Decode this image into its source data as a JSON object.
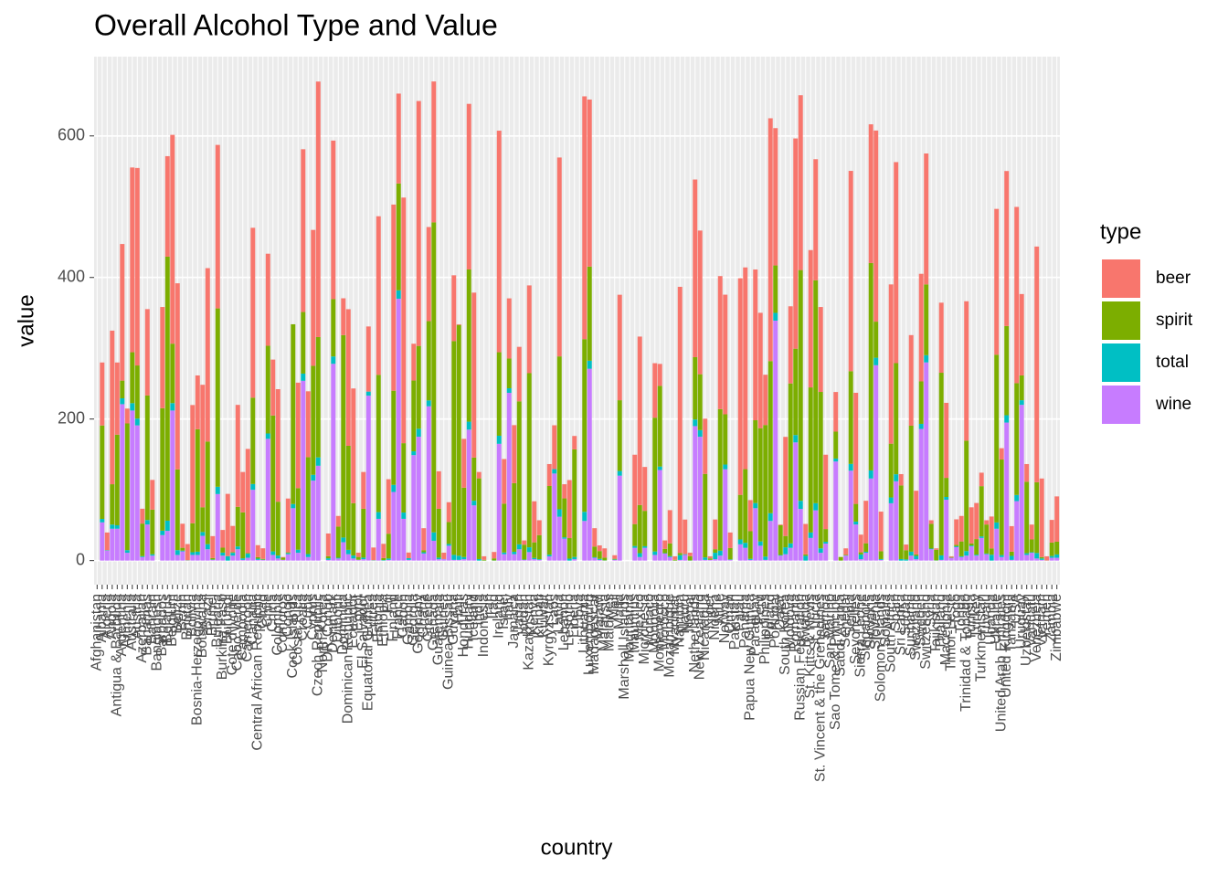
{
  "chart_data": {
    "type": "stacked_bar",
    "title": "Overall Alcohol Type and Value",
    "x_label": "country",
    "y_label": "value",
    "legend_title": "type",
    "ylim": [
      -34,
      712
    ],
    "yticks": [
      0,
      200,
      400,
      600
    ],
    "grid": true,
    "legend_position": "right",
    "categories": [
      "Afghanistan",
      "Albania",
      "Algeria",
      "Angola",
      "Antigua & Barbuda",
      "Argentina",
      "Armenia",
      "Australia",
      "Austria",
      "Azerbaijan",
      "Bahamas",
      "Bahrain",
      "Bangladesh",
      "Barbados",
      "Belarus",
      "Belgium",
      "Belize",
      "Benin",
      "Bhutan",
      "Bolivia",
      "Bosnia-Herzegovina",
      "Botswana",
      "Brazil",
      "Brunei",
      "Bulgaria",
      "Burkina Faso",
      "Burundi",
      "Cote d'Ivoire",
      "Cabo Verde",
      "Cambodia",
      "Cameroon",
      "Canada",
      "Central African Republic",
      "Chad",
      "Chile",
      "China",
      "Colombia",
      "Comoros",
      "Congo",
      "Cook Islands",
      "Costa Rica",
      "Croatia",
      "Cuba",
      "Cyprus",
      "Czech Republic",
      "North Korea",
      "DR Congo",
      "Denmark",
      "Djibouti",
      "Dominica",
      "Dominican Republic",
      "Ecuador",
      "Egypt",
      "El Salvador",
      "Equatorial Guinea",
      "Eritrea",
      "Estonia",
      "Ethiopia",
      "Fiji",
      "Finland",
      "France",
      "Gabon",
      "Gambia",
      "Georgia",
      "Germany",
      "Ghana",
      "Greece",
      "Grenada",
      "Guatemala",
      "Guinea",
      "Guinea-Bissau",
      "Guyana",
      "Haiti",
      "Honduras",
      "Hungary",
      "Iceland",
      "India",
      "Indonesia",
      "Iran",
      "Iraq",
      "Ireland",
      "Israel",
      "Italy",
      "Jamaica",
      "Japan",
      "Jordan",
      "Kazakhstan",
      "Kenya",
      "Kiribati",
      "Kuwait",
      "Kyrgyzstan",
      "Laos",
      "Latvia",
      "Lebanon",
      "Lesotho",
      "Liberia",
      "Libya",
      "Lithuania",
      "Luxembourg",
      "Madagascar",
      "Malawi",
      "Malaysia",
      "Maldives",
      "Mali",
      "Malta",
      "Marshall Islands",
      "Mauritania",
      "Mauritius",
      "Mexico",
      "Micronesia",
      "Monaco",
      "Mongolia",
      "Montenegro",
      "Morocco",
      "Mozambique",
      "Myanmar",
      "Namibia",
      "Nauru",
      "Nepal",
      "Netherlands",
      "New Zealand",
      "Nicaragua",
      "Niger",
      "Nigeria",
      "Niue",
      "Norway",
      "Oman",
      "Pakistan",
      "Palau",
      "Panama",
      "Papua New Guinea",
      "Paraguay",
      "Peru",
      "Philippines",
      "Poland",
      "Portugal",
      "Qatar",
      "South Korea",
      "Moldova",
      "Romania",
      "Russian Federation",
      "Rwanda",
      "St. Kitts & Nevis",
      "St. Lucia",
      "St. Vincent & the Grenadines",
      "Samoa",
      "San Marino",
      "Sao Tome & Principe",
      "Saudi Arabia",
      "Senegal",
      "Serbia",
      "Seychelles",
      "Sierra Leone",
      "Singapore",
      "Slovakia",
      "Slovenia",
      "Solomon Islands",
      "Somalia",
      "South Africa",
      "Spain",
      "Sri Lanka",
      "Sudan",
      "Suriname",
      "Swaziland",
      "Sweden",
      "Switzerland",
      "Syria",
      "Tajikistan",
      "Thailand",
      "Macedonia",
      "Timor-Leste",
      "Togo",
      "Tonga",
      "Trinidad & Tobago",
      "Tunisia",
      "Turkey",
      "Turkmenistan",
      "Tuvalu",
      "Uganda",
      "Ukraine",
      "United Arab Emirates",
      "United Kingdom",
      "Tanzania",
      "USA",
      "Uruguay",
      "Uzbekistan",
      "Vanuatu",
      "Venezuela",
      "Vietnam",
      "Yemen",
      "Zambia",
      "Zimbabwe"
    ],
    "series": [
      {
        "name": "beer",
        "color": "#F8766D",
        "values": [
          0,
          89,
          25,
          217,
          102,
          193,
          21,
          261,
          279,
          21,
          122,
          42,
          0,
          143,
          142,
          295,
          263,
          34,
          23,
          167,
          76,
          173,
          245,
          31,
          231,
          25,
          88,
          37,
          144,
          57,
          147,
          240,
          17,
          15,
          130,
          79,
          159,
          1,
          76,
          0,
          149,
          230,
          93,
          192,
          361,
          0,
          32,
          224,
          15,
          52,
          193,
          162,
          6,
          52,
          92,
          18,
          224,
          20,
          77,
          263,
          127,
          347,
          8,
          52,
          346,
          31,
          133,
          199,
          53,
          9,
          28,
          93,
          1,
          69,
          234,
          233,
          9,
          5,
          0,
          9,
          313,
          63,
          85,
          82,
          77,
          6,
          124,
          58,
          21,
          0,
          31,
          62,
          281,
          20,
          82,
          19,
          0,
          343,
          236,
          26,
          8,
          13,
          0,
          5,
          149,
          0,
          0,
          98,
          238,
          62,
          0,
          77,
          31,
          12,
          47,
          5,
          376,
          49,
          5,
          251,
          203,
          78,
          3,
          42,
          188,
          169,
          22,
          0,
          306,
          285,
          44,
          213,
          163,
          71,
          343,
          194,
          1,
          140,
          109,
          297,
          247,
          43,
          194,
          171,
          120,
          105,
          0,
          56,
          0,
          9,
          283,
          157,
          25,
          60,
          196,
          270,
          56,
          0,
          225,
          284,
          16,
          8,
          128,
          90,
          152,
          185,
          5,
          2,
          99,
          106,
          1,
          36,
          36,
          197,
          51,
          51,
          19,
          6,
          45,
          206,
          16,
          219,
          36,
          249,
          115,
          25,
          21,
          333,
          111,
          6,
          32,
          64
        ]
      },
      {
        "name": "spirit",
        "color": "#7CAE00",
        "values": [
          0,
          132,
          0,
          57,
          128,
          25,
          179,
          72,
          75,
          46,
          176,
          63,
          0,
          173,
          373,
          84,
          114,
          4,
          0,
          41,
          173,
          35,
          145,
          2,
          252,
          7,
          0,
          1,
          56,
          65,
          1,
          122,
          2,
          1,
          124,
          192,
          76,
          3,
          1,
          254,
          87,
          87,
          137,
          154,
          170,
          0,
          3,
          81,
          44,
          286,
          147,
          74,
          4,
          69,
          0,
          0,
          194,
          3,
          35,
          133,
          151,
          98,
          0,
          100,
          117,
          3,
          112,
          438,
          69,
          0,
          31,
          302,
          326,
          98,
          215,
          61,
          114,
          1,
          0,
          3,
          118,
          69,
          42,
          97,
          202,
          21,
          246,
          22,
          34,
          0,
          97,
          0,
          216,
          55,
          29,
          152,
          0,
          244,
          133,
          15,
          11,
          4,
          0,
          1,
          100,
          0,
          0,
          31,
          68,
          50,
          0,
          189,
          114,
          6,
          18,
          1,
          3,
          0,
          6,
          88,
          79,
          118,
          2,
          5,
          200,
          71,
          16,
          0,
          63,
          104,
          39,
          117,
          160,
          186,
          215,
          67,
          42,
          16,
          226,
          122,
          326,
          2,
          205,
          315,
          221,
          18,
          0,
          38,
          5,
          1,
          131,
          25,
          3,
          12,
          293,
          51,
          11,
          0,
          76,
          157,
          104,
          13,
          178,
          2,
          60,
          100,
          35,
          15,
          258,
          27,
          1,
          2,
          21,
          156,
          3,
          22,
          71,
          41,
          9,
          237,
          135,
          126,
          6,
          158,
          35,
          101,
          18,
          100,
          2,
          0,
          19,
          18
        ]
      },
      {
        "name": "total",
        "color": "#00BFC4",
        "values": [
          0,
          4.9,
          0.7,
          5.9,
          4.9,
          8.3,
          3.8,
          10.4,
          9.7,
          1.3,
          6.3,
          2.0,
          0,
          6.3,
          14.4,
          10.5,
          6.8,
          1.1,
          0.4,
          3.8,
          4.6,
          5.4,
          7.2,
          0.6,
          10.3,
          4.3,
          6.3,
          4.0,
          4.0,
          2.2,
          5.8,
          8.2,
          1.8,
          0.4,
          7.6,
          5.0,
          4.2,
          0.1,
          1.7,
          5.9,
          4.4,
          10.2,
          4.2,
          8.2,
          11.8,
          0,
          2.3,
          10.4,
          1.1,
          6.6,
          6.2,
          4.2,
          0.2,
          2.2,
          5.8,
          0.5,
          9.5,
          0.7,
          2.0,
          10.0,
          11.8,
          8.9,
          2.4,
          5.4,
          11.3,
          1.8,
          8.3,
          11.9,
          2.2,
          0.2,
          2.5,
          7.1,
          5.9,
          3.0,
          11.3,
          6.6,
          2.2,
          0.1,
          0,
          0.2,
          11.4,
          2.5,
          6.5,
          3.4,
          7.0,
          0.5,
          6.8,
          1.8,
          1.0,
          0,
          2.4,
          6.2,
          10.5,
          1.9,
          2.8,
          3.1,
          0,
          12.9,
          11.4,
          0.8,
          1.5,
          0.3,
          0,
          0.6,
          6.6,
          0,
          0,
          2.6,
          5.5,
          2.3,
          0,
          4.9,
          4.9,
          0.5,
          1.3,
          0.1,
          6.8,
          1.0,
          0.2,
          9.4,
          9.3,
          3.5,
          0.1,
          9.1,
          7.0,
          6.7,
          0.7,
          0,
          6.9,
          7.2,
          1.5,
          7.3,
          6.1,
          4.6,
          10.9,
          11.0,
          0.9,
          9.8,
          6.3,
          10.4,
          11.5,
          6.8,
          7.7,
          10.1,
          6.3,
          2.6,
          0,
          4.2,
          0.1,
          0.3,
          9.6,
          4.1,
          6.7,
          1.5,
          11.4,
          10.6,
          1.2,
          0,
          8.2,
          10.0,
          2.2,
          1.7,
          5.6,
          4.7,
          7.2,
          10.2,
          1.0,
          0.3,
          6.4,
          3.9,
          0.1,
          1.3,
          1.1,
          6.4,
          1.3,
          1.4,
          2.2,
          1.0,
          8.3,
          8.9,
          2.8,
          10.4,
          5.7,
          8.7,
          6.6,
          2.4,
          0.9,
          7.7,
          2.0,
          0.1,
          2.5,
          4.7
        ]
      },
      {
        "name": "wine",
        "color": "#C77CFF",
        "values": [
          0,
          54,
          14,
          45,
          45,
          221,
          11,
          212,
          191,
          5,
          51,
          7,
          0,
          36,
          42,
          212,
          8,
          13,
          0,
          8,
          8,
          35,
          16,
          1,
          94,
          7,
          0,
          7,
          16,
          1,
          4,
          100,
          1,
          1,
          172,
          8,
          3,
          1,
          9,
          74,
          11,
          254,
          5,
          113,
          134,
          0,
          1,
          278,
          3,
          26,
          9,
          3,
          1,
          2,
          233,
          0,
          59,
          0,
          1,
          97,
          370,
          59,
          1,
          149,
          175,
          10,
          218,
          28,
          2,
          2,
          21,
          1,
          1,
          2,
          185,
          78,
          0,
          0,
          0,
          0,
          165,
          9,
          237,
          9,
          16,
          1,
          12,
          2,
          1,
          0,
          6,
          123,
          62,
          31,
          0,
          2,
          0,
          56,
          271,
          4,
          1,
          0,
          0,
          1,
          120,
          0,
          0,
          18,
          5,
          18,
          0,
          8,
          128,
          10,
          5,
          0,
          1,
          8,
          0,
          190,
          175,
          1,
          1,
          2,
          7,
          129,
          1,
          0,
          23,
          18,
          1,
          74,
          21,
          1,
          56,
          339,
          7,
          9,
          18,
          167,
          73,
          0,
          32,
          71,
          11,
          24,
          0,
          140,
          0,
          7,
          127,
          51,
          2,
          11,
          116,
          276,
          1,
          0,
          81,
          112,
          0,
          0,
          7,
          2,
          186,
          280,
          16,
          0,
          1,
          86,
          4,
          19,
          5,
          7,
          20,
          7,
          32,
          9,
          0,
          45,
          5,
          195,
          1,
          84,
          220,
          8,
          11,
          3,
          1,
          0,
          4,
          4
        ]
      }
    ]
  }
}
